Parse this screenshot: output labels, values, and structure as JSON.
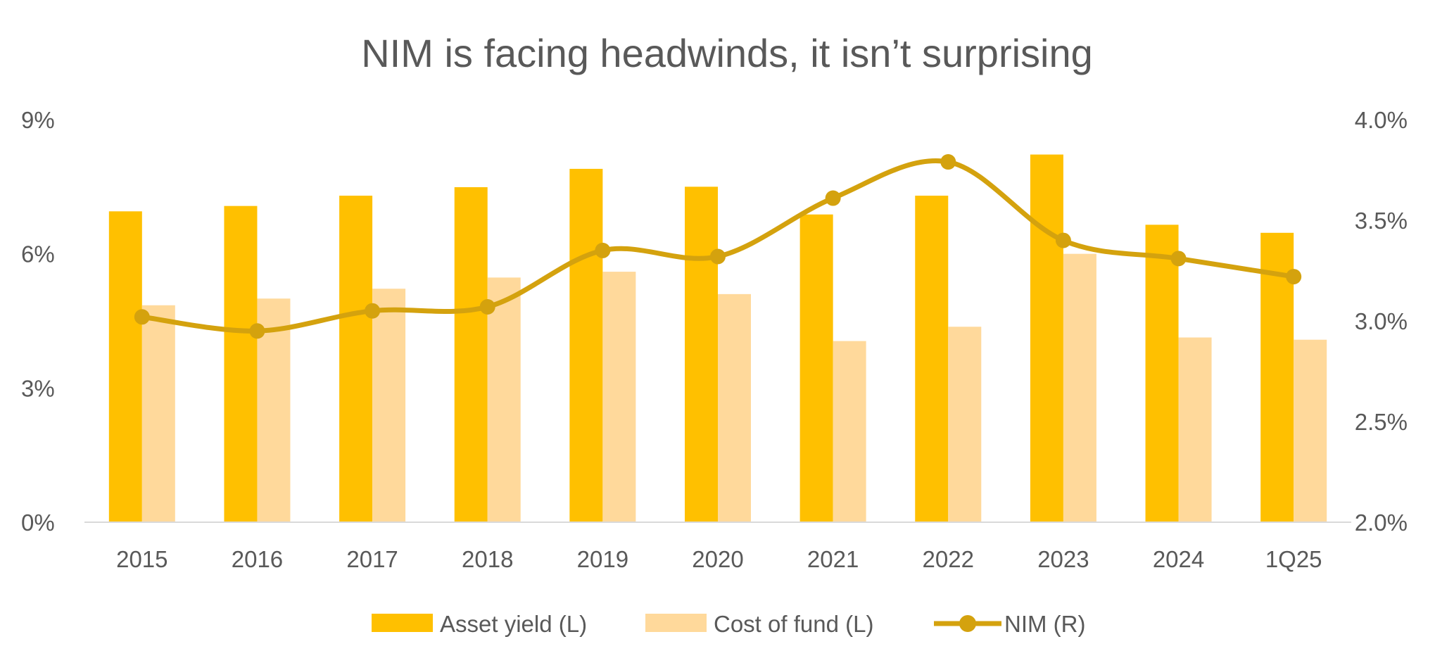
{
  "chart_data": {
    "type": "bar",
    "title": "NIM is facing headwinds, it isn’t surprising",
    "categories": [
      "2015",
      "2016",
      "2017",
      "2018",
      "2019",
      "2020",
      "2021",
      "2022",
      "2023",
      "2024",
      "1Q25"
    ],
    "series": [
      {
        "name": "Asset yield (L)",
        "type": "bar",
        "axis": "left",
        "color": "#FFC000",
        "values": [
          6.95,
          7.07,
          7.3,
          7.49,
          7.9,
          7.5,
          6.88,
          7.3,
          8.22,
          6.65,
          6.47
        ]
      },
      {
        "name": "Cost of fund (L)",
        "type": "bar",
        "axis": "left",
        "color": "#FFD99B",
        "values": [
          4.85,
          5.0,
          5.22,
          5.47,
          5.6,
          5.1,
          4.05,
          4.37,
          6.0,
          4.13,
          4.08
        ]
      },
      {
        "name": "NIM (R)",
        "type": "line",
        "axis": "right",
        "color": "#D4A20E",
        "smooth": true,
        "values": [
          3.02,
          2.95,
          3.05,
          3.07,
          3.35,
          3.32,
          3.61,
          3.79,
          3.4,
          3.31,
          3.22
        ]
      }
    ],
    "y_left": {
      "min": 0,
      "max": 9,
      "ticks": [
        0,
        3,
        6,
        9
      ],
      "tick_labels": [
        "0%",
        "3%",
        "6%",
        "9%"
      ]
    },
    "y_right": {
      "min": 2.0,
      "max": 4.0,
      "ticks": [
        2.0,
        2.5,
        3.0,
        3.5,
        4.0
      ],
      "tick_labels": [
        "2.0%",
        "2.5%",
        "3.0%",
        "3.5%",
        "4.0%"
      ]
    },
    "grid": false,
    "legend_position": "bottom"
  }
}
